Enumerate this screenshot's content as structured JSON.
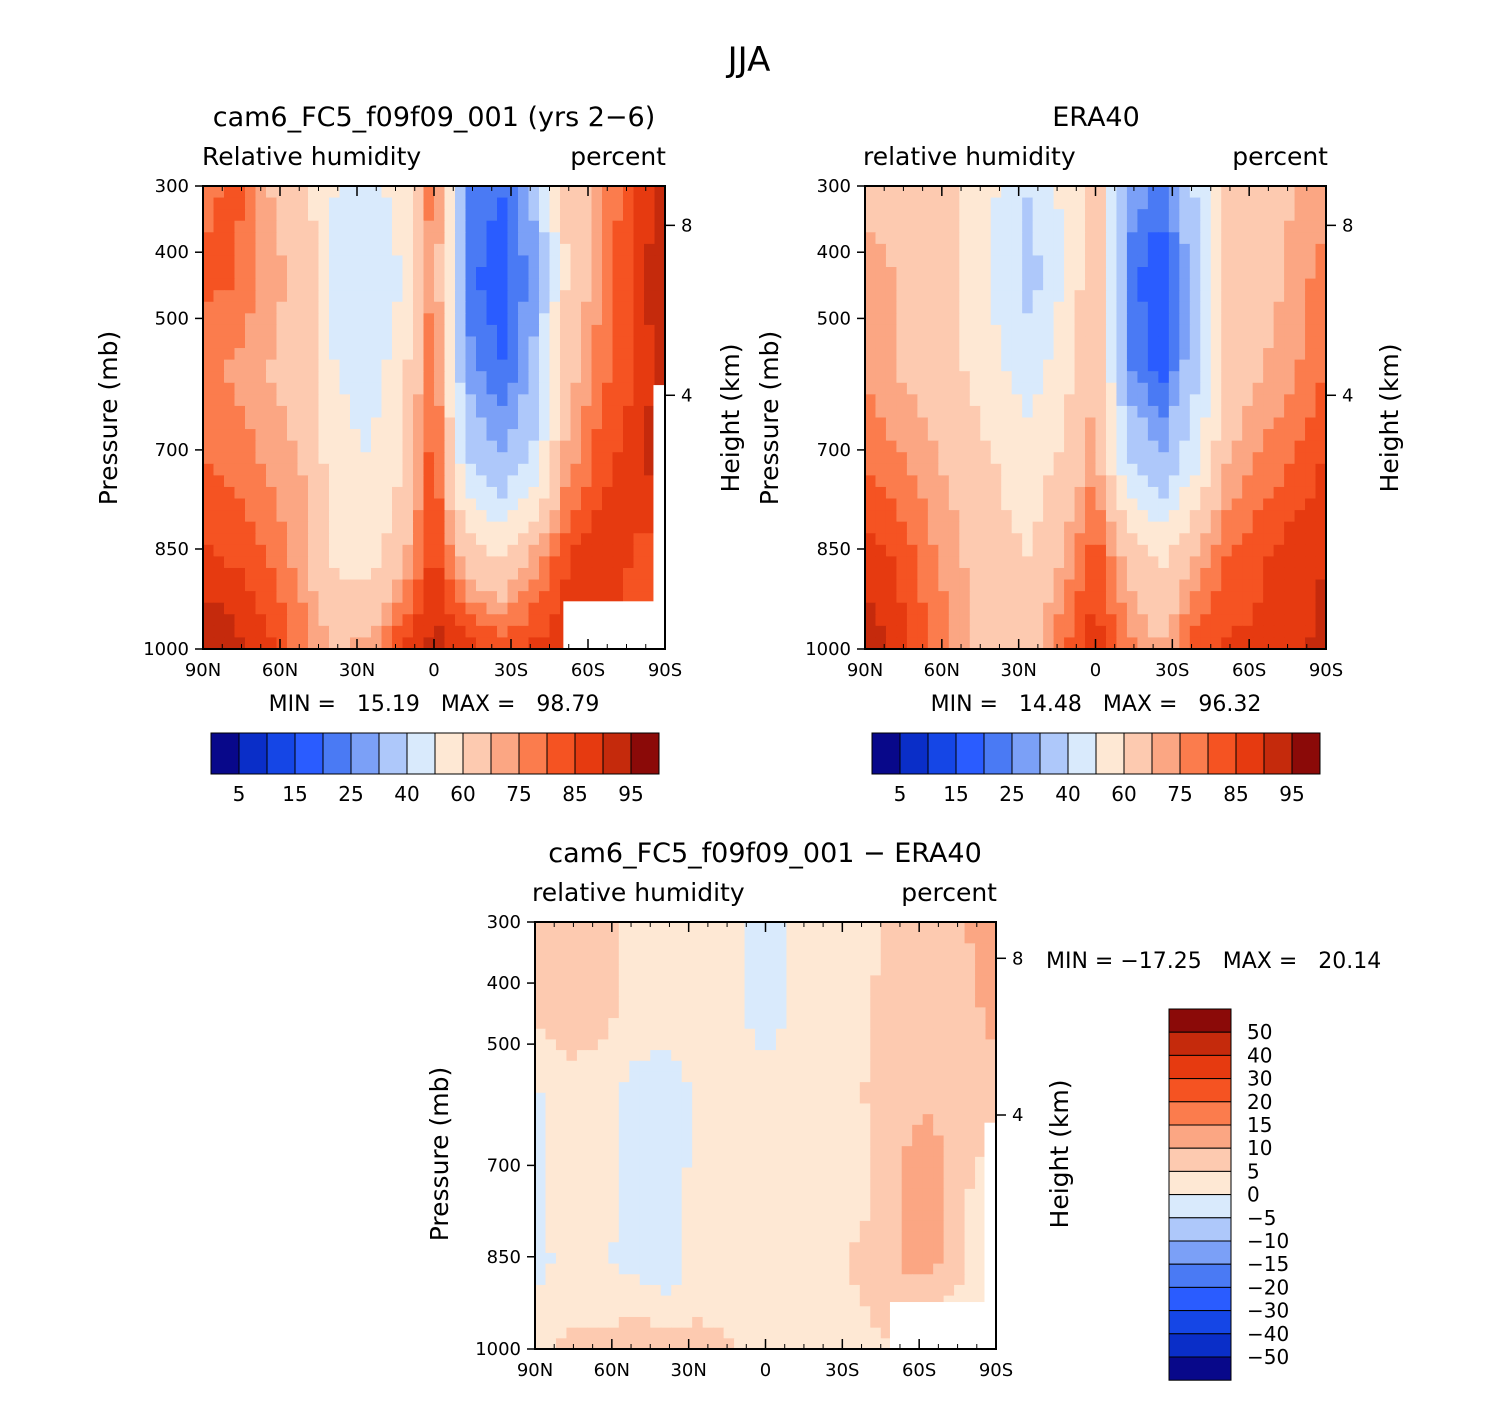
{
  "figure": {
    "title": "JJA"
  },
  "palettes": {
    "abs": [
      "#08088a",
      "#0a2ec8",
      "#1546e6",
      "#2a5cff",
      "#4a7af4",
      "#7ba0f7",
      "#aec8fa",
      "#d9eafc",
      "#fee8d4",
      "#fdcab0",
      "#fba683",
      "#fb7c4d",
      "#f55322",
      "#e63a10",
      "#c52a0c",
      "#8b0a08"
    ],
    "diff": [
      "#08088a",
      "#0a2ec8",
      "#1546e6",
      "#2a5cff",
      "#4a7af4",
      "#7ba0f7",
      "#aec8fa",
      "#d9eafc",
      "#fee8d4",
      "#fdcab0",
      "#fba683",
      "#fb7c4d",
      "#f55322",
      "#e63a10",
      "#c52a0c",
      "#8b0a08"
    ]
  },
  "colorbar_abs_labels": [
    "5",
    "15",
    "25",
    "40",
    "60",
    "75",
    "85",
    "95"
  ],
  "colorbar_diff_labels": [
    "50",
    "40",
    "30",
    "20",
    "15",
    "10",
    "5",
    "0",
    "−5",
    "−10",
    "−15",
    "−20",
    "−30",
    "−40",
    "−50"
  ],
  "panels": [
    {
      "title": "cam6_FC5_f09f09_001 (yrs 2−6)",
      "left_label": "Relative humidity",
      "right_label": "percent",
      "ylabel": "Pressure (mb)",
      "y2label": "Height (km)",
      "min_text": "MIN =   15.19   MAX =   98.79"
    },
    {
      "title": "ERA40",
      "left_label": "relative humidity",
      "right_label": "percent",
      "ylabel": "Pressure (mb)",
      "y2label": "Height (km)",
      "min_text": "MIN =   14.48   MAX =   96.32"
    },
    {
      "title": "cam6_FC5_f09f09_001 − ERA40",
      "left_label": "relative humidity",
      "right_label": "percent",
      "ylabel": "Pressure (mb)",
      "y2label": "Height (km)",
      "min_text": "MIN = −17.25   MAX =   20.14"
    }
  ],
  "axes": {
    "x_ticks": [
      "90N",
      "60N",
      "30N",
      "0",
      "30S",
      "60S",
      "90S"
    ],
    "y_ticks": [
      "300",
      "400",
      "500",
      "700",
      "850",
      "1000"
    ],
    "y2_ticks": [
      "8",
      "4"
    ]
  },
  "chart_data": [
    {
      "type": "heatmap",
      "title": "cam6_FC5_f09f09_001 (yrs 2−6)",
      "field": "Relative humidity",
      "units": "percent",
      "x": [
        90,
        60,
        30,
        0,
        -30,
        -60,
        -90
      ],
      "x_tick_labels": [
        "90N",
        "60N",
        "30N",
        "0",
        "30S",
        "60S",
        "90S"
      ],
      "y_levels_mb": [
        300,
        400,
        500,
        700,
        850,
        1000
      ],
      "ylabel": "Pressure (mb)",
      "y2label": "Height (km)",
      "min": 15.19,
      "max": 98.79,
      "contour_levels": [
        5,
        10,
        15,
        20,
        25,
        30,
        40,
        50,
        60,
        70,
        75,
        80,
        85,
        90,
        95
      ],
      "grid": [
        [
          78,
          82,
          70,
          65,
          50,
          45,
          55,
          80,
          25,
          20,
          30,
          62,
          72,
          85,
          92
        ],
        [
          82,
          80,
          72,
          68,
          45,
          42,
          50,
          78,
          22,
          16,
          28,
          60,
          74,
          86,
          95
        ],
        [
          76,
          74,
          70,
          66,
          50,
          45,
          55,
          82,
          28,
          20,
          30,
          66,
          78,
          84,
          94
        ],
        [
          80,
          78,
          74,
          70,
          55,
          50,
          60,
          84,
          42,
          30,
          42,
          72,
          82,
          88,
          94
        ],
        [
          86,
          84,
          80,
          72,
          58,
          55,
          66,
          88,
          66,
          58,
          72,
          84,
          90,
          85,
          80
        ],
        [
          96,
          92,
          86,
          78,
          70,
          72,
          86,
          92,
          88,
          84,
          86,
          88,
          86,
          82,
          80
        ]
      ]
    },
    {
      "type": "heatmap",
      "title": "ERA40",
      "field": "relative humidity",
      "units": "percent",
      "x": [
        90,
        60,
        30,
        0,
        -30,
        -60,
        -90
      ],
      "x_tick_labels": [
        "90N",
        "60N",
        "30N",
        "0",
        "30S",
        "60S",
        "90S"
      ],
      "y_levels_mb": [
        300,
        400,
        500,
        700,
        850,
        1000
      ],
      "ylabel": "Pressure (mb)",
      "y2label": "Height (km)",
      "min": 14.48,
      "max": 96.32,
      "contour_levels": [
        5,
        10,
        15,
        20,
        25,
        30,
        40,
        50,
        60,
        70,
        75,
        80,
        85,
        90,
        95
      ],
      "grid": [
        [
          65,
          64,
          62,
          60,
          50,
          40,
          52,
          66,
          30,
          22,
          40,
          62,
          64,
          70,
          72
        ],
        [
          76,
          70,
          64,
          60,
          48,
          35,
          50,
          68,
          22,
          15,
          32,
          62,
          66,
          72,
          78
        ],
        [
          74,
          70,
          66,
          60,
          52,
          45,
          55,
          70,
          26,
          18,
          36,
          64,
          70,
          74,
          80
        ],
        [
          80,
          76,
          72,
          66,
          60,
          55,
          62,
          74,
          42,
          30,
          48,
          70,
          76,
          80,
          86
        ],
        [
          88,
          84,
          76,
          70,
          62,
          60,
          70,
          84,
          66,
          58,
          70,
          80,
          84,
          88,
          90
        ],
        [
          94,
          88,
          80,
          72,
          66,
          66,
          80,
          88,
          78,
          70,
          84,
          86,
          86,
          88,
          92
        ]
      ]
    },
    {
      "type": "heatmap",
      "title": "cam6_FC5_f09f09_001 − ERA40",
      "field": "relative humidity",
      "units": "percent",
      "x": [
        90,
        60,
        30,
        0,
        -30,
        -60,
        -90
      ],
      "x_tick_labels": [
        "90N",
        "60N",
        "30N",
        "0",
        "30S",
        "60S",
        "90S"
      ],
      "y_levels_mb": [
        300,
        400,
        500,
        700,
        850,
        1000
      ],
      "ylabel": "Pressure (mb)",
      "y2label": "Height (km)",
      "min": -17.25,
      "max": 20.14,
      "contour_levels": [
        -50,
        -40,
        -30,
        -20,
        -15,
        -10,
        -5,
        0,
        5,
        10,
        15,
        20,
        30,
        40,
        50
      ],
      "grid": [
        [
          8,
          9,
          7,
          4,
          2,
          2,
          2,
          -2,
          2,
          3,
          3,
          7,
          9,
          10,
          11
        ],
        [
          6,
          8,
          7,
          4,
          3,
          2,
          1,
          -3,
          1,
          2,
          4,
          8,
          9,
          9,
          11
        ],
        [
          -1,
          3,
          3,
          -2,
          -3,
          1,
          2,
          3,
          2,
          3,
          5,
          8,
          9,
          8,
          9
        ],
        [
          -1,
          2,
          2,
          -2,
          -3,
          2,
          3,
          4,
          1,
          2,
          4,
          10,
          13,
          6,
          2
        ],
        [
          -2,
          2,
          1,
          -2,
          -4,
          3,
          4,
          3,
          3,
          4,
          6,
          10,
          12,
          6,
          -3
        ],
        [
          3,
          6,
          6,
          9,
          8,
          6,
          5,
          4,
          2,
          2,
          4,
          5,
          -1,
          0,
          0
        ]
      ]
    }
  ]
}
